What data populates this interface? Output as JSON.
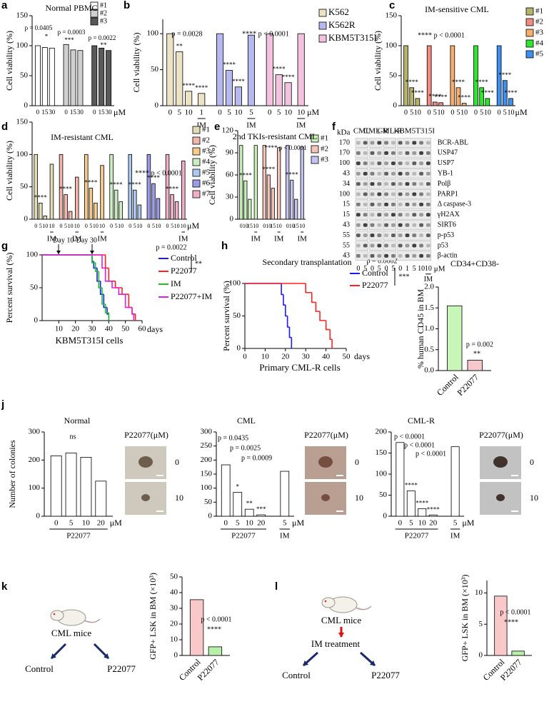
{
  "chart_data": [
    {
      "type": "bar",
      "label": "a",
      "title": "Normal PBMC",
      "ylabel": "Cell viability (%)",
      "ylim": [
        0,
        150
      ],
      "yticks": [
        0,
        50,
        100,
        150
      ],
      "categories": [
        "0",
        "15",
        "30"
      ],
      "unit": "μM",
      "legend": true,
      "series": [
        {
          "name": "#1",
          "color": "#ffffff",
          "values": [
            100,
            97,
            96
          ]
        },
        {
          "name": "#2",
          "color": "#d0d0d0",
          "values": [
            102,
            93,
            92
          ]
        },
        {
          "name": "#3",
          "color": "#595959",
          "values": [
            100,
            96,
            92
          ]
        }
      ],
      "annotations": [
        "p = 0.0405",
        "*",
        "p = 0.0003",
        "***",
        "p = 0.0022",
        "**"
      ]
    },
    {
      "type": "bar",
      "label": "b",
      "ylabel": "Cell viability (%)",
      "ylim": [
        0,
        120
      ],
      "yticks": [
        0,
        50,
        100
      ],
      "unit": "μM",
      "legend": true,
      "series": [
        {
          "name": "K562",
          "color": "#ebe3c3",
          "categories": [
            "0",
            "5",
            "10"
          ],
          "values": [
            100,
            75,
            20
          ],
          "stars": [
            null,
            "**",
            "****"
          ],
          "im": {
            "name": "IM",
            "categories": [
              "1"
            ],
            "values": [
              17
            ],
            "stars": [
              "****"
            ]
          }
        },
        {
          "name": "K562R",
          "color": "#b8b8f0",
          "categories": [
            "0",
            "5",
            "10"
          ],
          "values": [
            100,
            49,
            26
          ],
          "stars": [
            null,
            "****",
            "****"
          ],
          "im": {
            "name": "IM",
            "categories": [
              "5"
            ],
            "values": [
              98
            ]
          }
        },
        {
          "name": "KBM5T315I",
          "color": "#f2c2de",
          "categories": [
            "0",
            "5",
            "10"
          ],
          "values": [
            100,
            43,
            32
          ],
          "stars": [
            null,
            "****",
            "****"
          ],
          "im": {
            "name": "IM",
            "categories": [
              "10"
            ],
            "values": [
              100
            ]
          }
        }
      ],
      "annotations": [
        "p = 0.0028",
        "**** p < 0.0001"
      ]
    },
    {
      "type": "bar",
      "label": "c",
      "title": "IM-sensitive CML",
      "ylabel": "Cell viability (%)",
      "ylim": [
        0,
        150
      ],
      "yticks": [
        0,
        50,
        100,
        150
      ],
      "categories": [
        "0",
        "5",
        "10"
      ],
      "unit": "μM",
      "legend": true,
      "series": [
        {
          "name": "#1",
          "color": "#b7b26a",
          "values": [
            100,
            30,
            12
          ],
          "stars": [
            null,
            "****",
            "****"
          ]
        },
        {
          "name": "#2",
          "color": "#f28b82",
          "values": [
            100,
            6,
            5
          ],
          "stars": [
            null,
            "****",
            "****"
          ]
        },
        {
          "name": "#3",
          "color": "#f7ad6b",
          "values": [
            100,
            30,
            4
          ],
          "stars": [
            null,
            "****",
            "****"
          ]
        },
        {
          "name": "#4",
          "color": "#2ee62e",
          "values": [
            100,
            30,
            12
          ],
          "stars": [
            null,
            "****",
            "****"
          ]
        },
        {
          "name": "#5",
          "color": "#3f8ff0",
          "values": [
            100,
            42,
            12
          ],
          "stars": [
            null,
            "****",
            "****"
          ]
        }
      ],
      "annotations": [
        "**** p < 0.0001"
      ]
    },
    {
      "type": "bar",
      "label": "d",
      "title": "IM-resistant CML",
      "ylabel": "Cell viability (%)",
      "ylim": [
        0,
        150
      ],
      "yticks": [
        0,
        50,
        100,
        150
      ],
      "categories": [
        "0",
        "5",
        "10"
      ],
      "unit": "μM",
      "legend": true,
      "series": [
        {
          "name": "#1",
          "color": "#e4dcb4",
          "values": [
            100,
            25,
            5
          ],
          "stars": [
            null,
            "****",
            null
          ],
          "im": {
            "name": "IM",
            "categories": [
              "10"
            ],
            "values": [
              85
            ]
          }
        },
        {
          "name": "#2",
          "color": "#f2b6ad",
          "values": [
            100,
            38,
            12
          ],
          "stars": [
            null,
            "****",
            null
          ],
          "im": {
            "name": "IM",
            "categories": [
              "10"
            ],
            "values": [
              65
            ]
          }
        },
        {
          "name": "#3",
          "color": "#f7ca8e",
          "values": [
            100,
            48,
            25
          ],
          "stars": [
            null,
            "****",
            null
          ],
          "im": {
            "name": "IM",
            "categories": [
              "10"
            ],
            "values": [
              83
            ]
          }
        },
        {
          "name": "#4",
          "color": "#cdeec3",
          "values": [
            100,
            45,
            27
          ],
          "stars": [
            null,
            "****",
            null
          ]
        },
        {
          "name": "#5",
          "color": "#aec8f0",
          "values": [
            100,
            45,
            22
          ],
          "stars": [
            null,
            "****",
            null
          ]
        },
        {
          "name": "#6",
          "color": "#9c9ce8",
          "values": [
            100,
            55,
            32
          ],
          "stars": [
            null,
            "****",
            null
          ]
        },
        {
          "name": "#7",
          "color": "#f2b0c8",
          "values": [
            100,
            38,
            27
          ],
          "stars": [
            null,
            "****",
            null
          ],
          "im": {
            "name": "IM",
            "categories": [
              "10"
            ],
            "values": [
              90
            ]
          }
        }
      ],
      "annotations": [
        "**** p < 0.0001"
      ]
    },
    {
      "type": "bar",
      "label": "e",
      "title": "2nd TKIs-resistant CML",
      "ylabel": "Cell viability (%)",
      "ylim": [
        0,
        120
      ],
      "yticks": [
        0,
        30,
        60,
        90,
        120
      ],
      "categories": [
        "0",
        "10",
        "15"
      ],
      "legend": true,
      "series": [
        {
          "name": "#1",
          "color": "#c8f0b8",
          "values": [
            100,
            52,
            27
          ],
          "stars": [
            null,
            "****",
            null
          ],
          "im": {
            "name": "IM",
            "categories": [
              "10"
            ],
            "values": [
              100
            ]
          }
        },
        {
          "name": "#2",
          "color": "#f4c4b8",
          "values": [
            100,
            60,
            42
          ],
          "stars": [
            null,
            "****",
            null
          ],
          "im": {
            "name": "IM",
            "categories": [
              "10"
            ],
            "values": [
              97
            ]
          }
        },
        {
          "name": "#3",
          "color": "#c4c4f0",
          "values": [
            100,
            53,
            27
          ],
          "stars": [
            null,
            "****",
            null
          ],
          "im": {
            "name": "IM",
            "categories": [
              "10"
            ],
            "values": [
              98
            ]
          }
        }
      ],
      "annotations": [
        "**** p < 0.0001"
      ]
    },
    {
      "type": "line",
      "label": "g",
      "ylabel": "Percent survival (%)",
      "xlabel": "KBM5T315I cells",
      "xunit": "days",
      "xlim": [
        0,
        60
      ],
      "xticks": [
        10,
        20,
        30,
        40,
        50,
        60
      ],
      "ylim": [
        0,
        100
      ],
      "yticks": [
        0,
        50,
        100
      ],
      "series": [
        {
          "name": "Control",
          "color": "#1a1aff",
          "x": [
            0,
            30,
            31,
            33,
            35,
            37,
            39,
            40
          ],
          "values": [
            100,
            90,
            80,
            60,
            40,
            20,
            10,
            0
          ]
        },
        {
          "name": "P22077",
          "color": "#ff2020",
          "x": [
            0,
            38,
            40,
            44,
            48,
            52,
            54,
            56
          ],
          "values": [
            100,
            80,
            60,
            50,
            40,
            20,
            10,
            0
          ]
        },
        {
          "name": "IM",
          "color": "#20c020",
          "x": [
            0,
            30,
            32,
            34,
            36,
            38,
            40
          ],
          "values": [
            100,
            88,
            75,
            50,
            25,
            12,
            0
          ]
        },
        {
          "name": "P22077+IM",
          "color": "#e020e0",
          "x": [
            0,
            36,
            38,
            42,
            46,
            50,
            54,
            55
          ],
          "values": [
            100,
            80,
            60,
            50,
            40,
            20,
            10,
            0
          ]
        }
      ],
      "annotations": [
        "Day 10-Day 30",
        "p = 0.0022",
        "**"
      ]
    },
    {
      "type": "line",
      "label": "h",
      "title": "Secondary transplantation",
      "ylabel": "Percent survival (%)",
      "xlabel": "Primary CML-R cells",
      "xunit": "days",
      "xlim": [
        0,
        50
      ],
      "xticks": [
        0,
        10,
        20,
        30,
        40,
        50
      ],
      "ylim": [
        0,
        100
      ],
      "yticks": [
        0,
        50,
        100
      ],
      "series": [
        {
          "name": "Control",
          "color": "#1a1aff",
          "x": [
            0,
            18,
            19,
            20,
            21,
            22,
            23
          ],
          "values": [
            100,
            83,
            67,
            50,
            33,
            17,
            0
          ]
        },
        {
          "name": "P22077",
          "color": "#ff2020",
          "x": [
            0,
            30,
            33,
            35,
            37,
            40,
            42,
            43
          ],
          "values": [
            100,
            86,
            71,
            57,
            43,
            29,
            14,
            0
          ]
        }
      ],
      "annotations": [
        "p = 0.0002",
        "***"
      ]
    },
    {
      "type": "bar",
      "label": "i",
      "title": "CD34+CD38-",
      "ylabel": "% human CD45 in BM",
      "ylim": [
        0,
        2
      ],
      "yticks": [
        {
          "value": 0,
          "label": "0.0"
        },
        0.5,
        {
          "value": 1,
          "label": "1.0"
        },
        1.5,
        {
          "value": 2,
          "label": "2.0"
        }
      ],
      "categories": [
        "Control",
        "P22077"
      ],
      "values": [
        1.55,
        0.25
      ],
      "colors": [
        "#c8f5b8",
        "#f6c8cc"
      ],
      "rotate_labels": true,
      "annotations": [
        "p = 0.002",
        "**"
      ]
    },
    {
      "type": "bar",
      "label": "j",
      "title": "Normal",
      "ylabel": "Number of colonies",
      "ylim": [
        0,
        300
      ],
      "yticks": [
        0,
        100,
        200,
        300
      ],
      "unit": "μM",
      "series_below": true,
      "series": [
        {
          "name": "P22077",
          "color": "#ffffff",
          "categories": [
            "0",
            "5",
            "10",
            "20"
          ],
          "values": [
            215,
            225,
            210,
            125
          ]
        }
      ],
      "annotations": [
        "ns"
      ]
    },
    {
      "type": "bar",
      "title": "CML",
      "ylim": [
        0,
        300
      ],
      "yticks": [
        0,
        50,
        100,
        150,
        200,
        250,
        300
      ],
      "unit": "μM",
      "series_below": true,
      "series": [
        {
          "name": "P22077",
          "color": "#ffffff",
          "categories": [
            "0",
            "5",
            "10",
            "20"
          ],
          "values": [
            183,
            85,
            25,
            5
          ],
          "stars": [
            null,
            "*",
            "**",
            "***"
          ]
        },
        {
          "name": "IM",
          "color": "#ffffff",
          "categories": [
            "5"
          ],
          "values": [
            160
          ]
        }
      ],
      "annotations": [
        "p = 0.0435",
        "p = 0.0025",
        "p = 0.0009"
      ]
    },
    {
      "type": "bar",
      "title": "CML-R",
      "ylim": [
        0,
        200
      ],
      "yticks": [
        0,
        50,
        100,
        150,
        200
      ],
      "unit": "μM",
      "series_below": true,
      "series": [
        {
          "name": "P22077",
          "color": "#ffffff",
          "categories": [
            "0",
            "5",
            "10",
            "20"
          ],
          "values": [
            175,
            60,
            18,
            3
          ],
          "stars": [
            null,
            "****",
            "****",
            "****"
          ]
        },
        {
          "name": "IM",
          "color": "#ffffff",
          "categories": [
            "5"
          ],
          "values": [
            165
          ]
        }
      ],
      "annotations": [
        "p < 0.0001",
        "p < 0.0001",
        "p < 0.0001"
      ]
    },
    {
      "type": "bar",
      "label": "k",
      "ylabel": "GFP+ LSK in BM (×10³)",
      "ylim": [
        0,
        50
      ],
      "yticks": [
        0,
        10,
        20,
        30,
        40,
        50
      ],
      "categories": [
        "Control",
        "P22077"
      ],
      "values": [
        35.5,
        5.5
      ],
      "colors": [
        "#f9c9c9",
        "#b9f0a9"
      ],
      "rotate_labels": true,
      "annotations": [
        "p < 0.0001",
        "****"
      ]
    },
    {
      "type": "bar",
      "label": "l",
      "ylabel": "GFP+ LSK in BM (×10³)",
      "ylim": [
        0,
        12
      ],
      "yticks": [
        0,
        5,
        10
      ],
      "categories": [
        "Control",
        "P22077"
      ],
      "values": [
        9.5,
        0.7
      ],
      "colors": [
        "#f9c9c9",
        "#b9f0a9"
      ],
      "rotate_labels": true,
      "annotations": [
        "p < 0.0001",
        "****"
      ]
    }
  ],
  "blot": {
    "label": "f",
    "kda_title": "kDa",
    "headers": [
      "CML",
      "CML-R",
      "CML-R",
      "KBM5T315I"
    ],
    "kda": [
      "170",
      "170",
      "100",
      "43",
      "34",
      "100",
      "15",
      "15",
      "43",
      "55",
      "55",
      "43"
    ],
    "proteins": [
      "BCR-ABL",
      "USP47",
      "USP7",
      "YB-1",
      "Polβ",
      "PARP1",
      "Δ caspase-3",
      "γH2AX",
      "SIRT6",
      "p-p53",
      "p53",
      "β-actin"
    ],
    "lanes": [
      "0",
      "5",
      "0",
      "5",
      "0",
      "5",
      "0",
      "1",
      "5",
      "10",
      "10"
    ],
    "unit": "μM",
    "treatment": "IM"
  },
  "micrographs": [
    {
      "title": "P22077(μM)",
      "doses": [
        "0",
        "10"
      ]
    },
    {
      "title": "P22077(μM)",
      "doses": [
        "0",
        "10"
      ]
    },
    {
      "title": "P22077(μM)",
      "doses": [
        "0",
        "10"
      ]
    }
  ],
  "schemes": [
    {
      "mouse": "CML mice",
      "arms": [
        "Control",
        "P22077"
      ]
    },
    {
      "mouse": "CML mice",
      "treatment": "IM treatment",
      "arms": [
        "Control",
        "P22077"
      ]
    }
  ]
}
